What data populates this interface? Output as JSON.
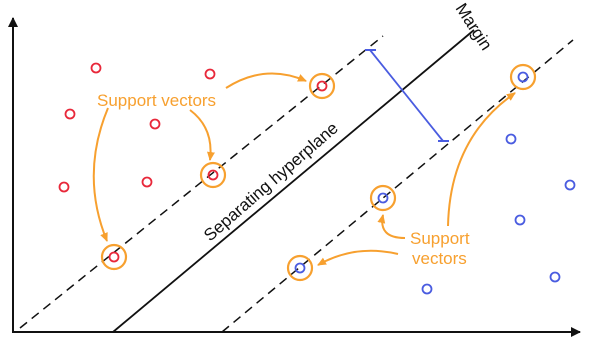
{
  "labels": {
    "margin": "Margin",
    "hyperplane": "Separating hyperplane",
    "support_vectors_top": "Support vectors",
    "support_vectors_bottom_line1": "Support",
    "support_vectors_bottom_line2": "vectors"
  },
  "colors": {
    "class_a": "#E8283A",
    "class_b": "#4A5CE0",
    "support_ring": "#F7A02F",
    "annotation": "#F7A02F",
    "margin_bracket": "#4A5CE0",
    "lines": "#111111"
  },
  "icons": {
    "axes": "x-y-axes-with-arrowheads",
    "hyperplane": "solid-line",
    "margin_boundaries": "dashed-lines"
  }
}
